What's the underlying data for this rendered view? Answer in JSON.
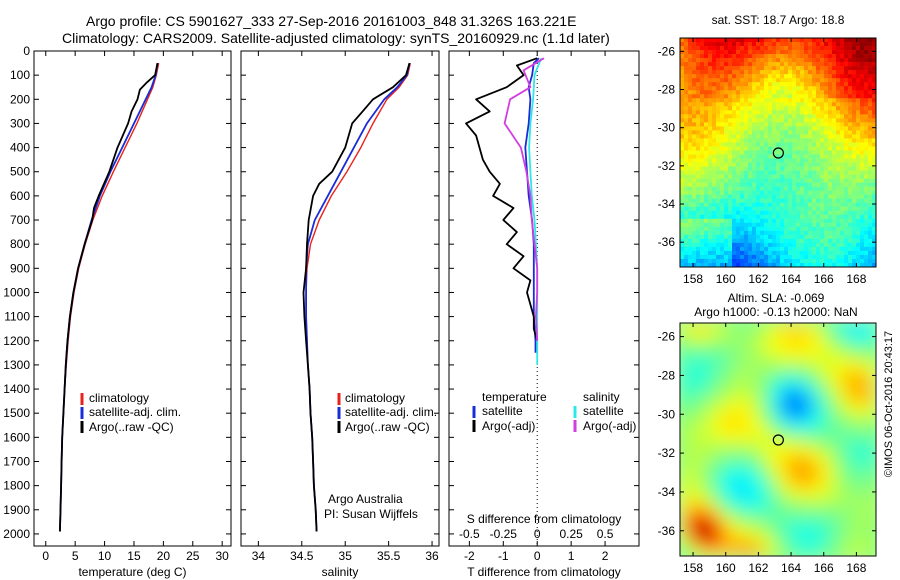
{
  "header": {
    "line1": "Argo profile: CS 5901627_333 27-Sep-2016 20161003_848 31.326S 163.221E",
    "line2": "Climatology: CARS2009. Satellite-adjusted climatology: synTS_20160929.nc (1.1d later)"
  },
  "colors": {
    "climatology": "#e8221b",
    "satellite": "#1a2cd8",
    "argo": "#000000",
    "sat_salinity": "#2ee8e8",
    "argo_salinity": "#d23ee0"
  },
  "legend_profiles": [
    "climatology",
    "satellite-adj. clim.",
    "Argo(..raw -QC)"
  ],
  "legend_diff": {
    "col1_title": "temperature",
    "col2_title": "salinity",
    "col1_items": [
      "satellite",
      "Argo(-adj)"
    ],
    "col2_items": [
      "satellite",
      "Argo(-adj)"
    ]
  },
  "credit": {
    "line1": "Argo Australia",
    "line2": "PI: Susan Wijffels"
  },
  "map_sst": {
    "title": "sat. SST: 18.7 Argo: 18.8",
    "colormap": "jet"
  },
  "map_sla": {
    "title1": "Altim. SLA: -0.069",
    "title2": "Argo h1000: -0.13 h2000: NaN",
    "colormap": "jet"
  },
  "watermark": "©IMOS 06-Oct-2016 20:43:17",
  "chart_data": [
    {
      "type": "line",
      "xlabel": "temperature (deg C)",
      "xticks": [
        0,
        5,
        10,
        15,
        20,
        25,
        30
      ],
      "xlim": [
        -2,
        31.5
      ],
      "yticks": [
        0,
        100,
        200,
        300,
        400,
        500,
        600,
        700,
        800,
        900,
        1000,
        1100,
        1200,
        1300,
        1400,
        1500,
        1600,
        1700,
        1800,
        1900,
        2000
      ],
      "ylim": [
        2050,
        0
      ],
      "series": [
        {
          "name": "climatology",
          "color": "#e8221b",
          "depth": [
            50,
            100,
            150,
            200,
            300,
            400,
            500,
            600,
            700,
            800,
            900,
            1000,
            1100,
            1200,
            1300,
            1400,
            1500,
            1600,
            1700,
            1800,
            1900,
            1990
          ],
          "values": [
            19.2,
            18.8,
            18.2,
            17.3,
            15.5,
            13.5,
            11.5,
            9.6,
            8.0,
            6.7,
            5.6,
            4.8,
            4.2,
            3.8,
            3.5,
            3.2,
            3.0,
            2.8,
            2.7,
            2.6,
            2.5,
            2.4
          ]
        },
        {
          "name": "satellite-adj. clim.",
          "color": "#1a2cd8",
          "depth": [
            50,
            100,
            150,
            200,
            300,
            400,
            500,
            600,
            700,
            800,
            900,
            1000,
            1100,
            1200,
            1300,
            1400,
            1500,
            1600,
            1700,
            1800,
            1900,
            1990
          ],
          "values": [
            19.0,
            18.7,
            18.0,
            17.0,
            15.0,
            13.0,
            11.0,
            9.2,
            7.8,
            6.6,
            5.5,
            4.7,
            4.1,
            3.7,
            3.4,
            3.2,
            3.0,
            2.8,
            2.7,
            2.6,
            2.5,
            2.4
          ]
        },
        {
          "name": "Argo(..raw -QC)",
          "color": "#000000",
          "depth": [
            50,
            100,
            130,
            160,
            200,
            250,
            300,
            400,
            500,
            600,
            650,
            700,
            800,
            900,
            1000,
            1100,
            1200,
            1300,
            1400,
            1500,
            1600,
            1700,
            1800,
            1900,
            1990
          ],
          "values": [
            19.0,
            18.6,
            17.2,
            16.0,
            15.6,
            14.6,
            14.0,
            12.2,
            10.8,
            9.0,
            8.2,
            7.9,
            6.6,
            5.5,
            4.7,
            4.1,
            3.7,
            3.4,
            3.2,
            3.0,
            2.8,
            2.7,
            2.6,
            2.5,
            2.4
          ]
        }
      ]
    },
    {
      "type": "line",
      "xlabel": "salinity",
      "xticks": [
        34,
        34.5,
        35,
        35.5,
        36
      ],
      "xlim": [
        33.8,
        36.08
      ],
      "yticks": [
        0,
        100,
        200,
        300,
        400,
        500,
        600,
        700,
        800,
        900,
        1000,
        1100,
        1200,
        1300,
        1400,
        1500,
        1600,
        1700,
        1800,
        1900,
        2000
      ],
      "ylim": [
        2050,
        0
      ],
      "series": [
        {
          "name": "climatology",
          "color": "#e8221b",
          "depth": [
            50,
            100,
            150,
            200,
            300,
            400,
            500,
            600,
            700,
            800,
            900,
            1000,
            1100,
            1200,
            1300,
            1400,
            1500,
            1600,
            1700,
            1800,
            1900,
            1990
          ],
          "values": [
            35.75,
            35.72,
            35.62,
            35.48,
            35.32,
            35.18,
            35.02,
            34.84,
            34.7,
            34.6,
            34.56,
            34.55,
            34.55,
            34.56,
            34.57,
            34.59,
            34.6,
            34.62,
            34.63,
            34.64,
            34.66,
            34.67
          ]
        },
        {
          "name": "satellite-adj. clim.",
          "color": "#1a2cd8",
          "depth": [
            50,
            100,
            150,
            200,
            300,
            400,
            500,
            600,
            700,
            800,
            900,
            1000,
            1100,
            1200,
            1300,
            1400,
            1500,
            1600,
            1700,
            1800,
            1900,
            1990
          ],
          "values": [
            35.74,
            35.71,
            35.6,
            35.45,
            35.25,
            35.1,
            34.95,
            34.8,
            34.65,
            34.57,
            34.55,
            34.55,
            34.55,
            34.56,
            34.57,
            34.59,
            34.6,
            34.62,
            34.63,
            34.64,
            34.66,
            34.67
          ]
        },
        {
          "name": "Argo(..raw -QC)",
          "color": "#000000",
          "depth": [
            50,
            100,
            150,
            200,
            250,
            300,
            400,
            500,
            550,
            600,
            700,
            800,
            900,
            1000,
            1100,
            1200,
            1300,
            1400,
            1500,
            1600,
            1700,
            1800,
            1900,
            1990
          ],
          "values": [
            35.74,
            35.7,
            35.55,
            35.32,
            35.2,
            35.08,
            35.0,
            34.85,
            34.7,
            34.63,
            34.58,
            34.56,
            34.55,
            34.52,
            34.53,
            34.55,
            34.57,
            34.59,
            34.6,
            34.62,
            34.63,
            34.64,
            34.66,
            34.67
          ]
        }
      ]
    },
    {
      "type": "line",
      "xlabel": "T difference from climatology",
      "xlabel_top": "S difference from climatology",
      "xticks": [
        -2,
        -1,
        0,
        1,
        2
      ],
      "xticks_top": [
        -0.5,
        -0.25,
        0,
        0.25,
        0.5
      ],
      "xlim": [
        -2.6,
        3.0
      ],
      "yticks": [
        0,
        100,
        200,
        300,
        400,
        500,
        600,
        700,
        800,
        900,
        1000,
        1100,
        1200,
        1300,
        1400,
        1500,
        1600,
        1700,
        1800,
        1900,
        2000
      ],
      "ylim": [
        2050,
        0
      ],
      "series": [
        {
          "name": "temperature satellite",
          "color": "#1a2cd8",
          "depth": [
            30,
            50,
            100,
            150,
            200,
            300,
            400,
            500,
            600,
            700,
            800,
            900,
            1000,
            1100,
            1200,
            1250
          ],
          "values": [
            0.05,
            -0.1,
            -0.15,
            -0.25,
            -0.2,
            -0.25,
            -0.35,
            -0.3,
            -0.25,
            -0.15,
            -0.1,
            -0.1,
            -0.1,
            -0.1,
            -0.05,
            -0.05
          ]
        },
        {
          "name": "temperature Argo(-adj)",
          "color": "#000000",
          "depth": [
            30,
            60,
            100,
            150,
            200,
            250,
            300,
            350,
            400,
            450,
            500,
            550,
            600,
            650,
            700,
            750,
            800,
            850,
            900,
            950,
            1000,
            1050,
            1100,
            1150,
            1200
          ],
          "values": [
            0.0,
            -0.6,
            -0.4,
            -0.9,
            -1.8,
            -1.4,
            -2.1,
            -1.8,
            -1.7,
            -1.6,
            -1.4,
            -1.1,
            -1.3,
            -0.7,
            -1.0,
            -0.6,
            -0.9,
            -0.4,
            -0.7,
            -0.2,
            -0.3,
            -0.2,
            -0.1,
            -0.1,
            0.0
          ]
        },
        {
          "name": "salinity satellite",
          "color": "#2ee8e8",
          "depth": [
            30,
            100,
            200,
            300,
            400,
            500,
            600,
            700,
            800,
            900,
            1000,
            1100,
            1200,
            1300
          ],
          "values": [
            0.03,
            -0.02,
            -0.03,
            -0.05,
            -0.06,
            -0.05,
            -0.04,
            -0.02,
            -0.01,
            0.0,
            0.0,
            0.0,
            0.0,
            0.0
          ]
        },
        {
          "name": "salinity Argo(-adj)",
          "color": "#d23ee0",
          "depth": [
            30,
            80,
            150,
            200,
            300,
            400,
            500,
            600,
            700,
            800,
            900,
            1000,
            1100,
            1200
          ],
          "values": [
            0.05,
            -0.1,
            -0.05,
            -0.2,
            -0.24,
            -0.12,
            -0.08,
            -0.05,
            -0.04,
            -0.02,
            0.0,
            0.0,
            -0.01,
            0.0
          ]
        }
      ]
    },
    {
      "type": "heatmap",
      "name": "sst-map",
      "xticks": [
        158,
        160,
        162,
        164,
        166,
        168
      ],
      "yticks": [
        -26,
        -28,
        -30,
        -32,
        -34,
        -36
      ],
      "xlim": [
        157.2,
        169.2
      ],
      "ylim": [
        -37.3,
        -25.3
      ],
      "marker": [
        163.221,
        -31.326
      ]
    },
    {
      "type": "heatmap",
      "name": "sla-map",
      "xticks": [
        158,
        160,
        162,
        164,
        166,
        168
      ],
      "yticks": [
        -26,
        -28,
        -30,
        -32,
        -34,
        -36
      ],
      "xlim": [
        157.2,
        169.2
      ],
      "ylim": [
        -37.3,
        -25.3
      ],
      "marker": [
        163.221,
        -31.326
      ]
    }
  ]
}
